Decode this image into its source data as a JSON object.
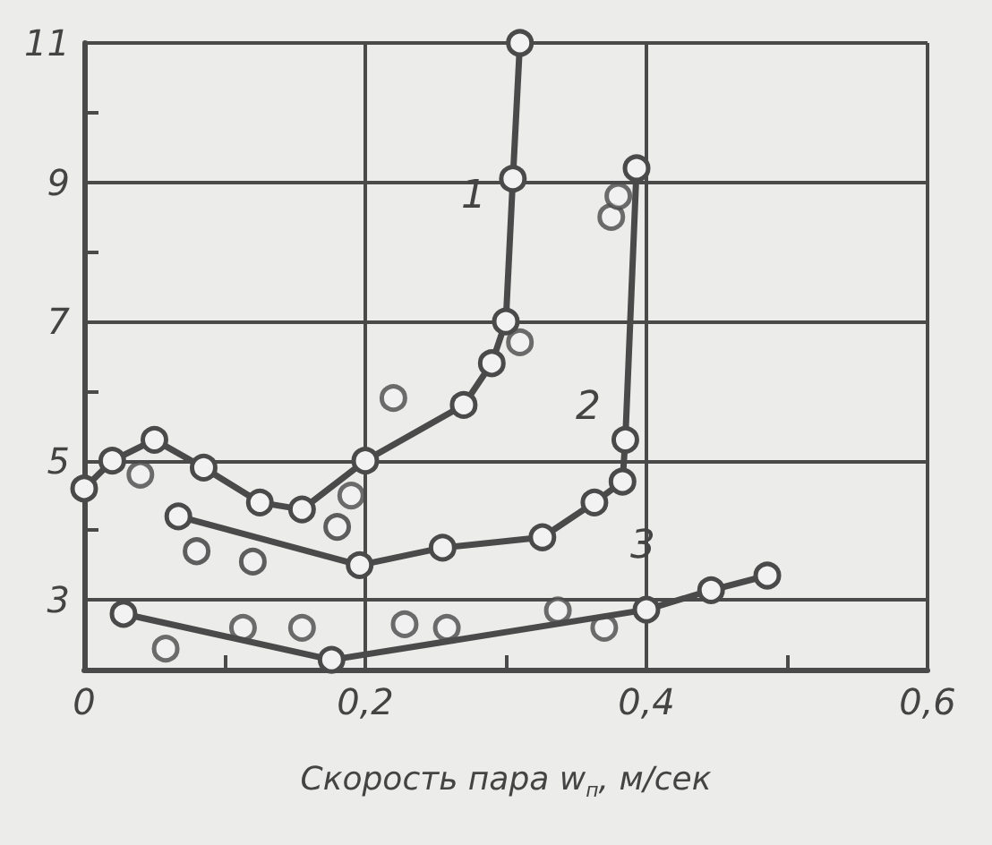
{
  "chart_data": {
    "type": "line",
    "xlabel": "Скорость пара w$_{п}$, м/сек",
    "xlim": [
      0,
      0.6
    ],
    "ylim": [
      2,
      11
    ],
    "xticks": [
      0,
      {
        "value": 0.1,
        "label": null
      },
      {
        "value": 0.2,
        "label": "0,2"
      },
      {
        "value": 0.3,
        "label": null
      },
      {
        "value": 0.4,
        "label": "0,4"
      },
      {
        "value": 0.5,
        "label": null
      },
      {
        "value": 0.6,
        "label": "0,6"
      }
    ],
    "yticks": [
      3,
      {
        "value": 4,
        "label": null
      },
      5,
      {
        "value": 6,
        "label": null
      },
      7,
      {
        "value": 8,
        "label": null
      },
      9,
      {
        "value": 10,
        "label": null
      },
      11
    ],
    "grid": true,
    "marker": "circle",
    "line_style": "solid",
    "series": [
      {
        "color": "#4a4a4a",
        "x": [
          0.0,
          0.02,
          0.05,
          0.085,
          0.125,
          0.155,
          0.2,
          0.27,
          0.29,
          0.3,
          0.305,
          0.31
        ],
        "values": [
          4.6,
          5.0,
          5.3,
          4.9,
          4.4,
          4.3,
          5.0,
          5.8,
          6.4,
          7.0,
          9.05,
          11.0
        ]
      },
      {
        "color": "#4a4a4a",
        "x": [
          0.067,
          0.196,
          0.255,
          0.326,
          0.363,
          0.383,
          0.385,
          0.393
        ],
        "values": [
          4.2,
          3.5,
          3.75,
          3.9,
          4.4,
          4.7,
          5.3,
          9.2
        ]
      },
      {
        "color": "#4a4a4a",
        "x": [
          0.028,
          0.176,
          0.4,
          0.446,
          0.486
        ],
        "values": [
          2.8,
          2.14,
          2.86,
          3.14,
          3.35
        ]
      },
      {
        "type": "scatter",
        "color": "#4a4a4a",
        "x": [
          0.04,
          0.22,
          0.31,
          0.19,
          0.058,
          0.113,
          0.155,
          0.228,
          0.258,
          0.337,
          0.37,
          0.375,
          0.38
        ],
        "values": [
          4.8,
          5.9,
          6.7,
          4.5,
          2.3,
          2.6,
          2.6,
          2.65,
          2.6,
          2.85,
          2.6,
          8.5,
          8.8
        ]
      },
      {
        "type": "scatter",
        "color": "#3a3a3a",
        "x": [
          0.08,
          0.12,
          0.18
        ],
        "values": [
          3.7,
          3.55,
          4.05
        ]
      }
    ],
    "annotations": [
      "1",
      "2",
      "3"
    ]
  }
}
